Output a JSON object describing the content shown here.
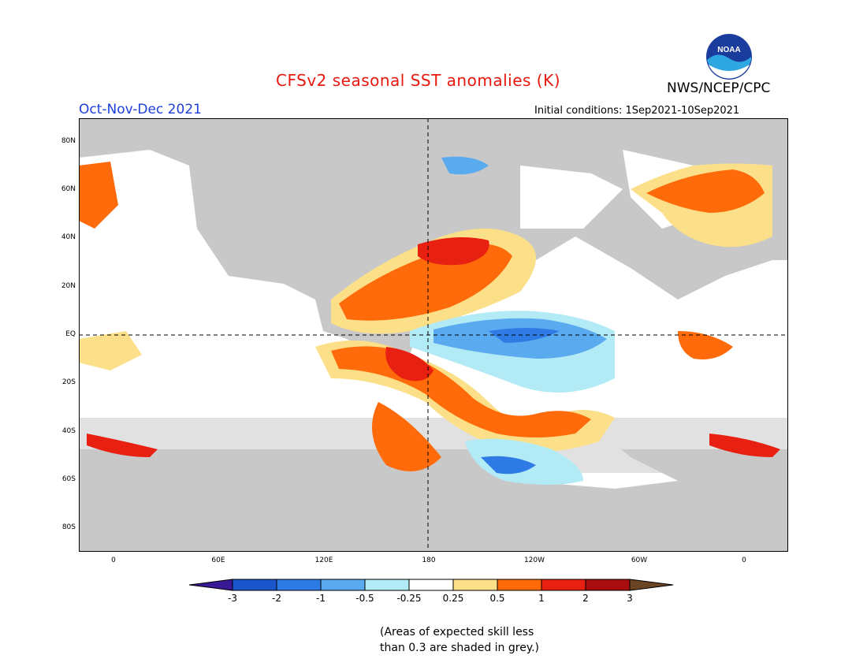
{
  "title": "CFSv2 seasonal SST anomalies (K)",
  "organization": "NWS/NCEP/CPC",
  "logo_text": "NOAA",
  "season": "Oct-Nov-Dec 2021",
  "initial_conditions": "Initial conditions: 1Sep2021-10Sep2021",
  "lat_labels": [
    "80N",
    "60N",
    "40N",
    "20N",
    "EQ",
    "20S",
    "40S",
    "60S",
    "80S"
  ],
  "lon_labels": [
    "0",
    "60E",
    "120E",
    "180",
    "120W",
    "60W",
    "0"
  ],
  "colorbar": {
    "ticks": [
      "-3",
      "-2",
      "-1",
      "-0.5",
      "-0.25",
      "0.25",
      "0.5",
      "1",
      "2",
      "3"
    ],
    "colors": [
      "#3a1996",
      "#1c56cc",
      "#2f7be6",
      "#5aaaf0",
      "#b2eaf5",
      "#ffffff",
      "#fce089",
      "#ff6a0a",
      "#e82012",
      "#a80e0e",
      "#6b4424"
    ]
  },
  "note": [
    "(Areas of expected skill less",
    "than 0.3 are shaded in grey.)"
  ]
}
